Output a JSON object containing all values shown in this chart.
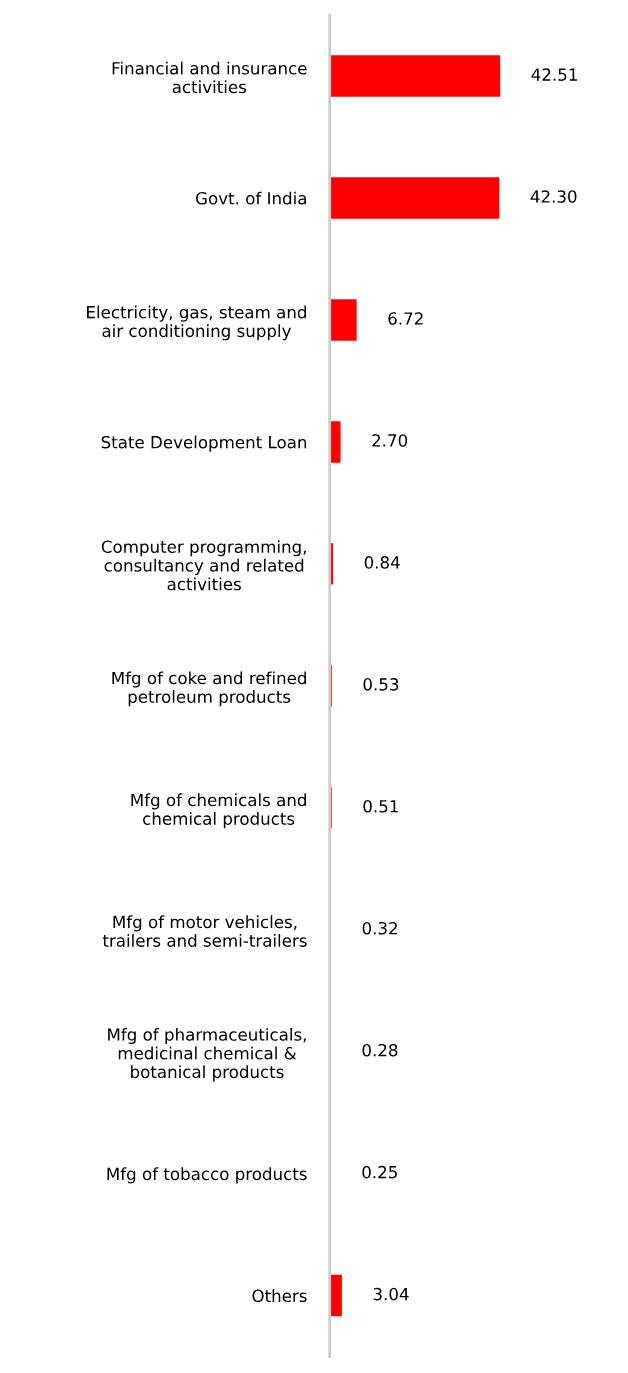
{
  "chart_data": {
    "type": "bar",
    "orientation": "horizontal",
    "categories": [
      "Financial and insurance\nactivities",
      "Govt. of India",
      "Electricity, gas, steam and\nair conditioning supply",
      "State Development Loan",
      "Computer programming,\nconsultancy and related\nactivities",
      "Mfg of coke and refined\npetroleum products",
      "Mfg of chemicals and\nchemical products",
      "Mfg of motor vehicles,\ntrailers and semi-trailers",
      "Mfg of pharmaceuticals,\nmedicinal chemical &\nbotanical products",
      "Mfg of tobacco products",
      "Others"
    ],
    "values": [
      42.51,
      42.3,
      6.72,
      2.7,
      0.84,
      0.53,
      0.51,
      0.32,
      0.28,
      0.25,
      3.04
    ],
    "value_labels": [
      "42.51",
      "42.30",
      "6.72",
      "2.70",
      "0.84",
      "0.53",
      "0.51",
      "0.32",
      "0.28",
      "0.25",
      "3.04"
    ],
    "color": "#ff0000",
    "tick_labels": "y",
    "grid": false,
    "legend": false
  }
}
